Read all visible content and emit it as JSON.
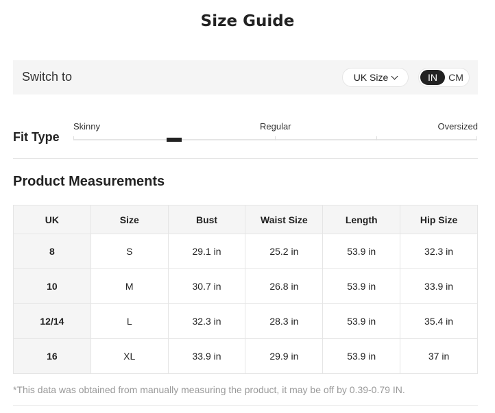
{
  "title": "Size Guide",
  "switch": {
    "label": "Switch to",
    "size_system": "UK Size",
    "units": [
      "IN",
      "CM"
    ],
    "active_unit": "IN"
  },
  "fit": {
    "label": "Fit Type",
    "scale": [
      "Skinny",
      "Regular",
      "Oversized"
    ],
    "position": 0.25
  },
  "measurements": {
    "title": "Product Measurements",
    "headers": [
      "UK",
      "Size",
      "Bust",
      "Waist Size",
      "Length",
      "Hip Size"
    ],
    "rows": [
      [
        "8",
        "S",
        "29.1 in",
        "25.2 in",
        "53.9 in",
        "32.3 in"
      ],
      [
        "10",
        "M",
        "30.7 in",
        "26.8 in",
        "53.9 in",
        "33.9 in"
      ],
      [
        "12/14",
        "L",
        "32.3 in",
        "28.3 in",
        "53.9 in",
        "35.4 in"
      ],
      [
        "16",
        "XL",
        "33.9 in",
        "29.9 in",
        "53.9 in",
        "37 in"
      ]
    ]
  },
  "note": "*This data was obtained from manually measuring the product, it may be off by 0.39-0.79 IN."
}
